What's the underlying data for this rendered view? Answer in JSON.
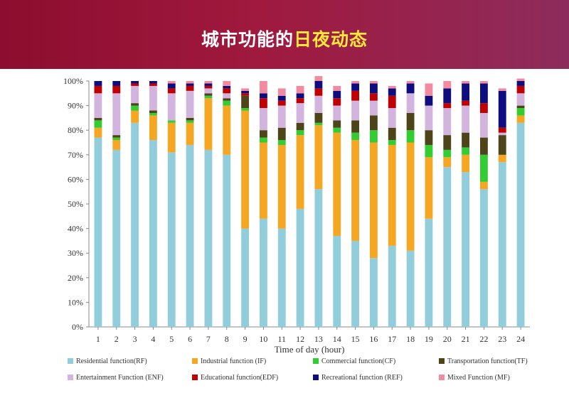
{
  "header": {
    "title_prefix": "城市功能的",
    "title_highlight": "日夜动态",
    "bg_color": "#9b1a3f",
    "highlight_color": "#ffe83a"
  },
  "chart_data": {
    "type": "bar",
    "stacked": true,
    "title": "",
    "xlabel": "Time of day (hour)",
    "ylabel": "",
    "ylim": [
      0,
      100
    ],
    "y_ticks": [
      "0%",
      "10%",
      "20%",
      "30%",
      "40%",
      "50%",
      "60%",
      "70%",
      "80%",
      "90%",
      "100%"
    ],
    "grid": false,
    "legend_position": "bottom",
    "categories": [
      "1",
      "2",
      "3",
      "4",
      "5",
      "6",
      "7",
      "8",
      "9",
      "10",
      "11",
      "12",
      "13",
      "14",
      "15",
      "16",
      "17",
      "18",
      "19",
      "20",
      "21",
      "22",
      "23",
      "24"
    ],
    "series": [
      {
        "name": "Residential function(RF)",
        "color": "#92cddc",
        "values": [
          77,
          72,
          83,
          76,
          71,
          74,
          72,
          70,
          40,
          44,
          40,
          48,
          56,
          37,
          35,
          28,
          33,
          31,
          44,
          65,
          63,
          56,
          67,
          83
        ]
      },
      {
        "name": "Industrial function (IF)",
        "color": "#f5a623",
        "values": [
          4,
          4,
          5,
          10,
          12,
          9,
          21,
          20,
          48,
          31,
          34,
          30,
          26,
          42,
          41,
          47,
          41,
          44,
          25,
          4,
          7,
          3,
          3,
          3
        ]
      },
      {
        "name": "Commercial function(CF)",
        "color": "#33cc33",
        "values": [
          3,
          1,
          2,
          1,
          1,
          1,
          1,
          2,
          1,
          2,
          2,
          2,
          1,
          2,
          3,
          5,
          2,
          5,
          5,
          3,
          3,
          11,
          0,
          3
        ]
      },
      {
        "name": "Transportation function(TF)",
        "color": "#4d4519",
        "values": [
          1,
          1,
          1,
          1,
          0,
          1,
          1,
          1,
          5,
          3,
          5,
          3,
          4,
          3,
          5,
          6,
          5,
          7,
          6,
          6,
          6,
          7,
          8,
          1
        ]
      },
      {
        "name": "Entertainment Function (ENF)",
        "color": "#d2b4de",
        "values": [
          10,
          17,
          7,
          10,
          11,
          11,
          2,
          2,
          0,
          9,
          9,
          8,
          7,
          6,
          8,
          6,
          8,
          8,
          10,
          11,
          11,
          10,
          1,
          5
        ]
      },
      {
        "name": "Educational function(EDF)",
        "color": "#c00000",
        "values": [
          3,
          3,
          1,
          1,
          2,
          2,
          1,
          2,
          1,
          4,
          2,
          2,
          3,
          3,
          4,
          3,
          5,
          0,
          0,
          2,
          2,
          4,
          2,
          3
        ]
      },
      {
        "name": "Recreational function (REF)",
        "color": "#0d0d80",
        "values": [
          2,
          2,
          1,
          1,
          2,
          1,
          1,
          1,
          1,
          2,
          2,
          2,
          3,
          3,
          3,
          4,
          3,
          4,
          4,
          6,
          7,
          8,
          15,
          2
        ]
      },
      {
        "name": "Mixed Function (MF)",
        "color": "#f28ba0",
        "values": [
          0,
          0,
          0,
          0,
          1,
          1,
          1,
          2,
          1,
          5,
          3,
          3,
          2,
          2,
          1,
          1,
          1,
          1,
          5,
          3,
          1,
          1,
          1,
          1
        ]
      }
    ]
  }
}
